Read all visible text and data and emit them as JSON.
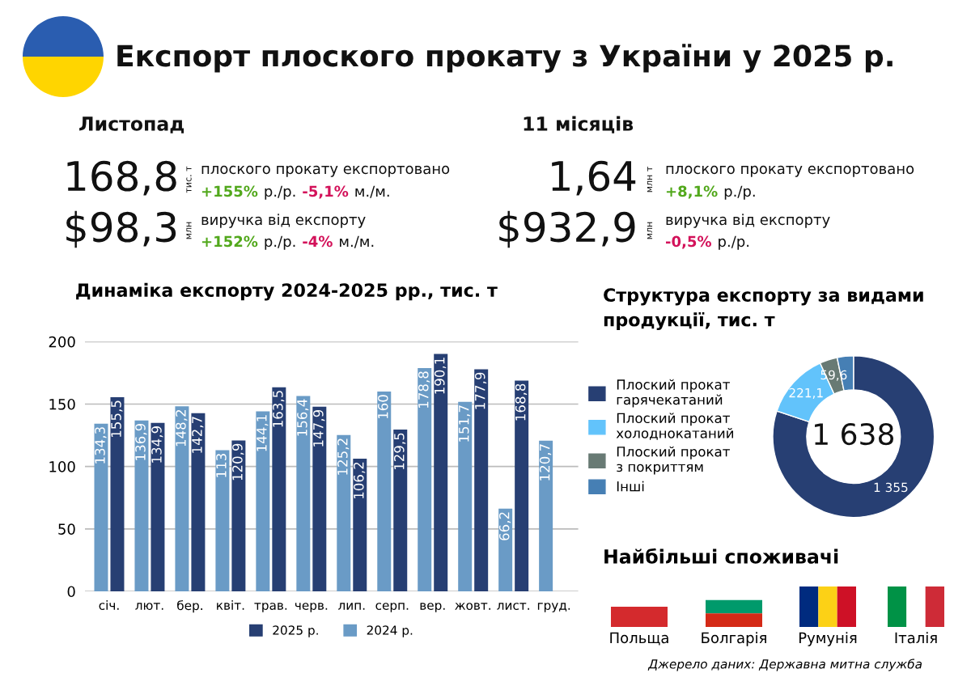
{
  "chart_data": [
    {
      "type": "other",
      "title": "Експорт плоского прокату з України у 2025 р.",
      "annotations": [
        "Листопад",
        "168,8",
        "тис. т",
        "плоского прокату експортовано",
        "+155%",
        "р./р.",
        "-5,1%",
        "м./м.",
        "$98,3",
        "млн",
        "виручка від експорту",
        "+152%",
        "р./р.",
        "-4%",
        "м./м.",
        "11 місяців",
        "1,64",
        "млн т",
        "плоского прокату експортовано",
        "+8,1%",
        "р./р.",
        "$932,9",
        "млн",
        "виручка від експорту",
        "-0,5%",
        "р./р."
      ],
      "colors": [
        "#111111",
        "#111111",
        "#111111",
        "#111111",
        "#52a81c",
        "#111111",
        "#d3125a",
        "#111111",
        "#111111",
        "#111111",
        "#111111",
        "#52a81c",
        "#111111",
        "#d3125a",
        "#111111",
        "#111111",
        "#111111",
        "#111111",
        "#111111",
        "#52a81c",
        "#111111",
        "#111111",
        "#111111",
        "#111111",
        "#d3125a",
        "#111111"
      ]
    },
    {
      "type": "bar",
      "title": "Динаміка експорту 2024-2025 рр., тис. т",
      "categories": [
        "січ.",
        "лют.",
        "бер.",
        "квіт.",
        "трав.",
        "черв.",
        "лип.",
        "серп.",
        "вер.",
        "жовт.",
        "лист.",
        "груд."
      ],
      "series": [
        {
          "name": "2024 р.",
          "color": "#6a9bc6",
          "values": [
            134.3,
            136.9,
            148.2,
            113,
            144.1,
            156.4,
            125.2,
            160,
            178.8,
            151.7,
            66.2,
            120.7
          ],
          "value_labels": [
            "134,3",
            "136,9",
            "148,2",
            "113",
            "144,1",
            "156,4",
            "125,2",
            "160",
            "178,8",
            "151,7",
            "66,2",
            "120,7"
          ]
        },
        {
          "name": "2025 р.",
          "color": "#273f73",
          "values": [
            155.5,
            134.9,
            142.7,
            120.9,
            163.5,
            147.9,
            106.2,
            129.5,
            190.1,
            177.9,
            168.8,
            null
          ],
          "value_labels": [
            "155,5",
            "134,9",
            "142,7",
            "120,9",
            "163,5",
            "147,9",
            "106,2",
            "129,5",
            "190,1",
            "177,9",
            "168,8",
            null
          ]
        }
      ],
      "ylim": [
        0,
        200
      ],
      "yticks": [
        0,
        50,
        100,
        150,
        200
      ],
      "grid": "y",
      "legend": "bottom"
    },
    {
      "type": "donut",
      "title": "Структура експорту за видами\nпродукції, тис. т",
      "categories": [
        "Плоский прокат\nгарячекатаний",
        "Плоский прокат\nхолоднокатаний",
        "Плоский прокат\nз покриттям",
        "Інші"
      ],
      "values": [
        1355,
        221.1,
        59.6,
        55
      ],
      "colors": [
        "#273f73",
        "#62c3fb",
        "#687a74",
        "#467fb4"
      ],
      "value_labels": [
        "1 355",
        "221,1",
        "59,6",
        null
      ],
      "annotations": [
        "1 638"
      ],
      "legend": "left"
    },
    {
      "type": "other",
      "title": "Найбільші споживачі",
      "annotations": [
        "Польща",
        "Болгарія",
        "Румунія",
        "Італія",
        "Джерело даних: Державна митна служба"
      ]
    }
  ]
}
